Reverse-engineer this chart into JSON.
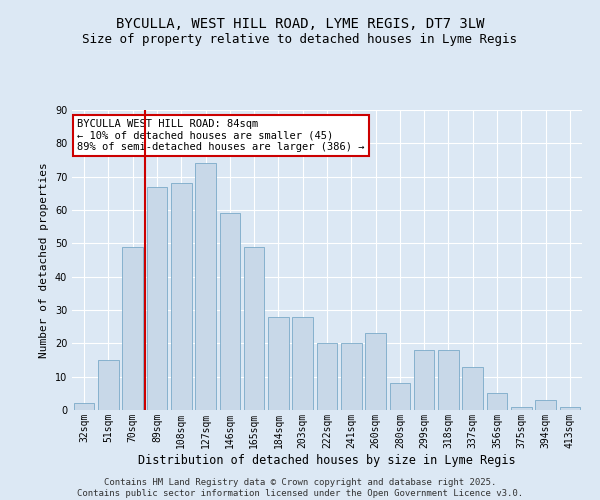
{
  "title": "BYCULLA, WEST HILL ROAD, LYME REGIS, DT7 3LW",
  "subtitle": "Size of property relative to detached houses in Lyme Regis",
  "xlabel": "Distribution of detached houses by size in Lyme Regis",
  "ylabel": "Number of detached properties",
  "categories": [
    "32sqm",
    "51sqm",
    "70sqm",
    "89sqm",
    "108sqm",
    "127sqm",
    "146sqm",
    "165sqm",
    "184sqm",
    "203sqm",
    "222sqm",
    "241sqm",
    "260sqm",
    "280sqm",
    "299sqm",
    "318sqm",
    "337sqm",
    "356sqm",
    "375sqm",
    "394sqm",
    "413sqm"
  ],
  "values": [
    2,
    15,
    49,
    67,
    68,
    74,
    59,
    49,
    28,
    28,
    20,
    20,
    23,
    8,
    18,
    18,
    13,
    5,
    1,
    3,
    1
  ],
  "bar_color": "#c8d8e8",
  "bar_edge_color": "#7aaac8",
  "vline_x_index": 2.5,
  "vline_color": "#cc0000",
  "annotation_text": "BYCULLA WEST HILL ROAD: 84sqm\n← 10% of detached houses are smaller (45)\n89% of semi-detached houses are larger (386) →",
  "annotation_box_color": "#ffffff",
  "annotation_box_edge_color": "#cc0000",
  "ylim": [
    0,
    90
  ],
  "yticks": [
    0,
    10,
    20,
    30,
    40,
    50,
    60,
    70,
    80,
    90
  ],
  "bg_color": "#dce8f4",
  "grid_color": "#ffffff",
  "footer": "Contains HM Land Registry data © Crown copyright and database right 2025.\nContains public sector information licensed under the Open Government Licence v3.0.",
  "title_fontsize": 10,
  "subtitle_fontsize": 9,
  "xlabel_fontsize": 8.5,
  "ylabel_fontsize": 8,
  "tick_fontsize": 7,
  "footer_fontsize": 6.5,
  "annot_fontsize": 7.5
}
